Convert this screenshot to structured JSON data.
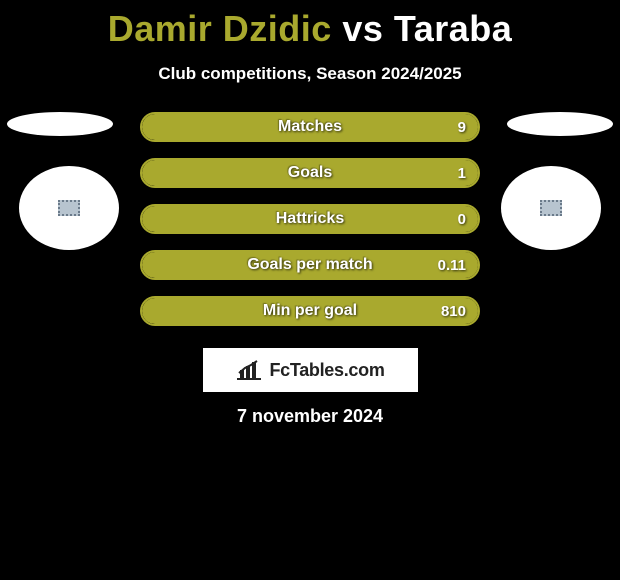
{
  "header": {
    "player1": "Damir Dzidic",
    "vs": "vs",
    "player2": "Taraba",
    "subtitle": "Club competitions, Season 2024/2025",
    "player1_color": "#a9a92e",
    "player2_color": "#ffffff"
  },
  "stats": {
    "bar_border_color": "#a9a92e",
    "bar_fill_color": "#a9a92e",
    "rows": [
      {
        "label": "Matches",
        "value": "9",
        "fill_pct": 100
      },
      {
        "label": "Goals",
        "value": "1",
        "fill_pct": 100
      },
      {
        "label": "Hattricks",
        "value": "0",
        "fill_pct": 100
      },
      {
        "label": "Goals per match",
        "value": "0.11",
        "fill_pct": 100
      },
      {
        "label": "Min per goal",
        "value": "810",
        "fill_pct": 100
      }
    ]
  },
  "footer": {
    "logo_text": "FcTables.com",
    "date": "7 november 2024"
  },
  "style": {
    "background": "#000000",
    "text_color": "#ffffff"
  }
}
